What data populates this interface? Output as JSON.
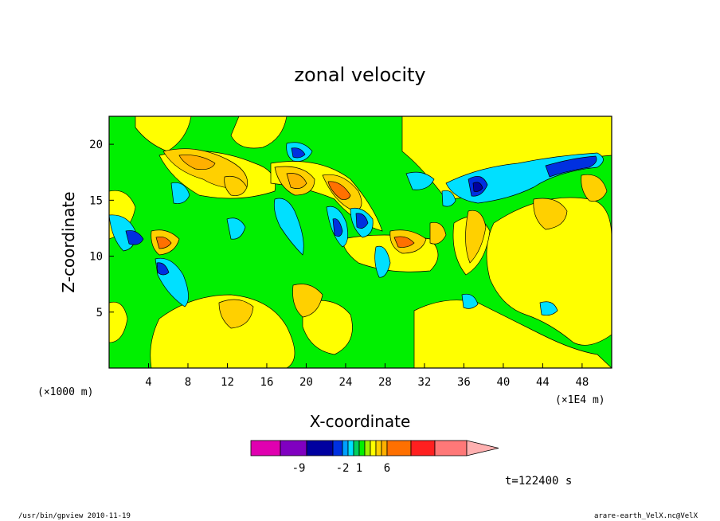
{
  "chart_data": {
    "type": "heatmap",
    "title": "zonal velocity",
    "xlabel": "X-coordinate",
    "ylabel": "Z-coordinate",
    "x_axis": {
      "ticks": [
        4,
        8,
        12,
        16,
        20,
        24,
        28,
        32,
        36,
        40,
        44,
        48
      ],
      "range": [
        0,
        51
      ],
      "unit_left": "(×1000 m)",
      "unit_right": "(×1E4 m)"
    },
    "y_axis": {
      "ticks": [
        5,
        10,
        15,
        20
      ],
      "range": [
        0,
        22.5
      ]
    },
    "colorbar": {
      "levels": [
        "-9",
        "-2",
        "1",
        "6"
      ],
      "colors": [
        "#e000b0",
        "#8000c0",
        "#0000a0",
        "#0030e0",
        "#00a0ff",
        "#00e0ff",
        "#00d060",
        "#00f000",
        "#a0f000",
        "#ffff00",
        "#ffd000",
        "#ffb000",
        "#ff7000",
        "#ff2020",
        "#ff7878",
        "#ffb0b0"
      ]
    },
    "time_label": "t=122400 s",
    "footer_left": "/usr/bin/gpview   2010-11-19",
    "footer_right": "arare-earth_VelX.nc@VelX"
  }
}
